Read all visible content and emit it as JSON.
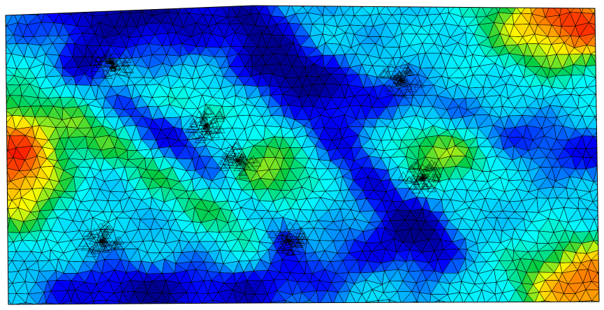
{
  "figure": {
    "kind": "finite-element mesh contour plot",
    "colormap": "jet",
    "background": "#ffffff",
    "mesh_edge_color": "#000000",
    "colormap_stops": [
      "#00008f",
      "#0000ff",
      "#00bfff",
      "#00ffff",
      "#00cc44",
      "#ffff00",
      "#ff8000",
      "#ff0000"
    ]
  }
}
